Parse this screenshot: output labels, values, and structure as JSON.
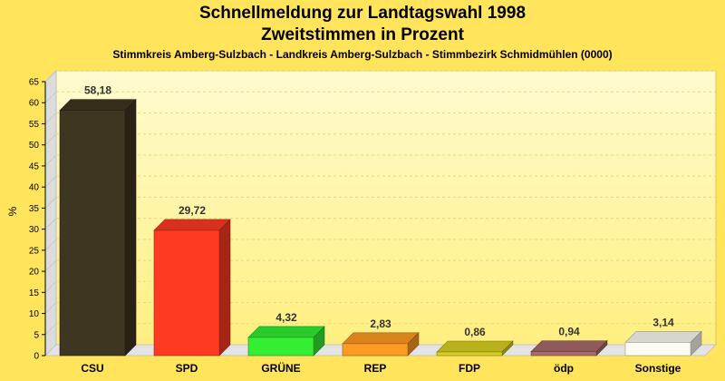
{
  "colors": {
    "background": "#ffe45c",
    "plot_top": "#fffbd0",
    "plot_bottom": "#ffef80"
  },
  "chart_data": {
    "type": "bar",
    "title": "Schnellmeldung zur Landtagswahl 1998",
    "subtitle": "Zweitstimmen in Prozent",
    "caption": "Stimmkreis Amberg-Sulzbach - Landkreis Amberg-Sulzbach - Stimmbezirk Schmidmühlen (0000)",
    "xlabel": "",
    "ylabel": "%",
    "ylim": [
      0,
      65
    ],
    "yticks": [
      0,
      5,
      10,
      15,
      20,
      25,
      30,
      35,
      40,
      45,
      50,
      55,
      60,
      65
    ],
    "grid": true,
    "categories": [
      "CSU",
      "SPD",
      "GRÜNE",
      "REP",
      "FDP",
      "ödp",
      "Sonstige"
    ],
    "values": [
      58.18,
      29.72,
      4.32,
      2.83,
      0.86,
      0.94,
      3.14
    ],
    "value_labels": [
      "58,18",
      "29,72",
      "4,32",
      "2,83",
      "0,86",
      "0,94",
      "3,14"
    ],
    "bar_colors": [
      "#3d3620",
      "#ff3a22",
      "#33ee33",
      "#ff9a22",
      "#d8d020",
      "#a86a6a",
      "#fcfcf2"
    ]
  }
}
